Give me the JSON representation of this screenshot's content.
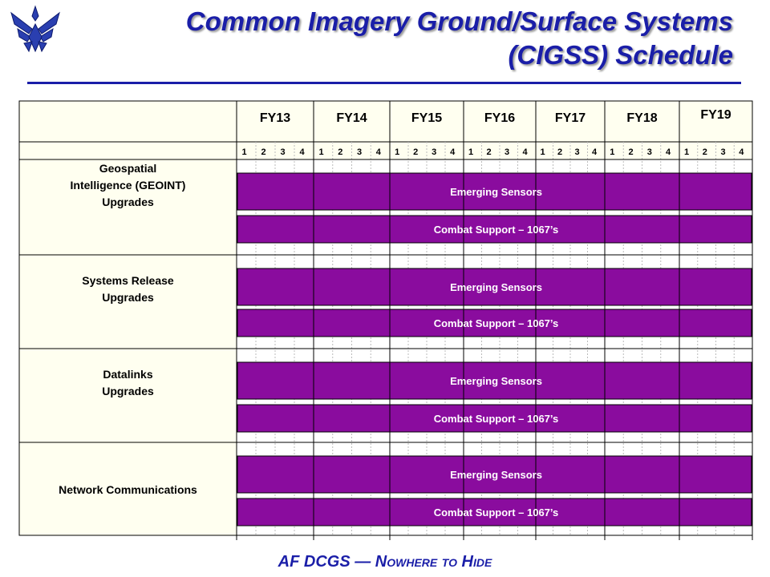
{
  "header": {
    "title_line1": "Common Imagery Ground/Surface Systems",
    "title_line2": "(CIGSS) Schedule"
  },
  "logo": {
    "icon": "air-force-wings-icon",
    "color": "#2a3fb0"
  },
  "colors": {
    "title": "#1a1ea8",
    "bar_fill": "#8a0c9e",
    "bar_text": "#ffffff",
    "cell_fill": "#fffff0",
    "grid": "#000000"
  },
  "fiscal_years": [
    "FY13",
    "FY14",
    "FY15",
    "FY16",
    "FY17",
    "FY18",
    "FY19"
  ],
  "quarters": [
    "1",
    "2",
    "3",
    "4"
  ],
  "rows": [
    {
      "label": [
        "Geospatial",
        "Intelligence  (GEOINT)",
        "Upgrades"
      ],
      "bars": [
        "Emerging Sensors",
        "Combat Support – 1067’s"
      ]
    },
    {
      "label": [
        "Systems  Release",
        "Upgrades"
      ],
      "bars": [
        "Emerging Sensors",
        "Combat Support – 1067’s"
      ]
    },
    {
      "label": [
        "Datalinks",
        "Upgrades"
      ],
      "bars": [
        "Emerging Sensors",
        "Combat Support – 1067’s"
      ]
    },
    {
      "label": [
        "Network Communications"
      ],
      "bars": [
        "Emerging Sensors",
        "Combat Support – 1067’s"
      ]
    }
  ],
  "footer": {
    "prefix": "AF  DCGS  — ",
    "motto": "Nowhere to Hide"
  }
}
